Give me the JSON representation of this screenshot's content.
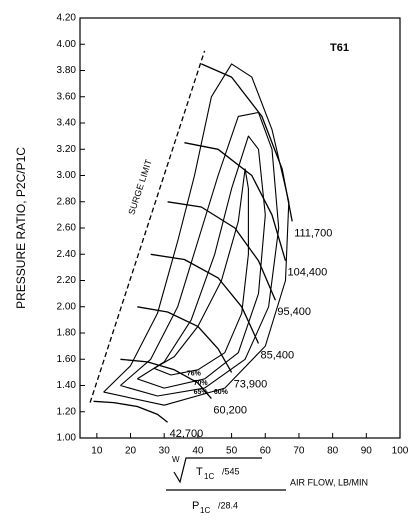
{
  "chart_data": {
    "type": "line",
    "title": "T61",
    "y_label": "PRESSURE RATIO, P2C/P1C",
    "x_label": {
      "w": "W",
      "t": "T",
      "t_sub": "1C",
      "t_div": "/545",
      "p": "P",
      "p_sub": "1C",
      "p_div": "/28.4",
      "text": "AIR FLOW, LB/MIN"
    },
    "xlim": [
      5,
      100
    ],
    "ylim": [
      1.0,
      4.2
    ],
    "xticks": [
      10,
      20,
      30,
      40,
      50,
      60,
      70,
      80,
      90,
      100
    ],
    "yticks": [
      {
        "value": 1.0,
        "label": "1.00"
      },
      {
        "value": 1.2,
        "label": "1.20"
      },
      {
        "value": 1.4,
        "label": "1.40"
      },
      {
        "value": 1.6,
        "label": "1.60"
      },
      {
        "value": 1.8,
        "label": "1.80"
      },
      {
        "value": 2.0,
        "label": "2.00"
      },
      {
        "value": 2.2,
        "label": "2.20"
      },
      {
        "value": 2.4,
        "label": "2.40"
      },
      {
        "value": 2.6,
        "label": "2.60"
      },
      {
        "value": 2.8,
        "label": "2.80"
      },
      {
        "value": 3.0,
        "label": "3.00"
      },
      {
        "value": 3.2,
        "label": "3.20"
      },
      {
        "value": 3.4,
        "label": "3.40"
      },
      {
        "value": 3.6,
        "label": "3.60"
      },
      {
        "value": 3.8,
        "label": "3.80"
      },
      {
        "value": 4.0,
        "label": "4.00"
      },
      {
        "value": 4.2,
        "label": "4.20"
      }
    ],
    "grid": false,
    "color": "#000000",
    "surge_limit": {
      "label": "SURGE LIMIT",
      "x": [
        8,
        42
      ],
      "values": [
        1.27,
        3.95
      ]
    },
    "series": [
      {
        "name": "42,700",
        "x": [
          9,
          15,
          22,
          28,
          31
        ],
        "values": [
          1.28,
          1.27,
          1.24,
          1.18,
          1.12
        ]
      },
      {
        "name": "60,200",
        "x": [
          17,
          25,
          33,
          40,
          44
        ],
        "values": [
          1.6,
          1.58,
          1.52,
          1.42,
          1.3
        ]
      },
      {
        "name": "73,900",
        "x": [
          22,
          31,
          40,
          46,
          50
        ],
        "values": [
          2.0,
          1.96,
          1.85,
          1.68,
          1.5
        ]
      },
      {
        "name": "85,400",
        "x": [
          26,
          36,
          46,
          53,
          58
        ],
        "values": [
          2.4,
          2.36,
          2.22,
          2.0,
          1.72
        ]
      },
      {
        "name": "95,400",
        "x": [
          31,
          41,
          51,
          58,
          63
        ],
        "values": [
          2.8,
          2.76,
          2.6,
          2.35,
          2.05
        ]
      },
      {
        "name": "104,400",
        "x": [
          36,
          46,
          56,
          62,
          66
        ],
        "values": [
          3.25,
          3.2,
          3.0,
          2.7,
          2.35
        ]
      },
      {
        "name": "111,700",
        "x": [
          41,
          50,
          59,
          65,
          68
        ],
        "values": [
          3.85,
          3.75,
          3.45,
          3.05,
          2.65
        ]
      }
    ],
    "contours": [
      {
        "name": "76%",
        "x": [
          27,
          33,
          40,
          47,
          52,
          54,
          55,
          55,
          53,
          48,
          40,
          32,
          27
        ],
        "values": [
          1.53,
          1.62,
          1.85,
          2.2,
          2.65,
          3.05,
          2.9,
          2.4,
          1.95,
          1.65,
          1.52,
          1.48,
          1.53
        ]
      },
      {
        "name": "70%",
        "x": [
          22,
          30,
          38,
          45,
          50,
          55,
          58,
          60,
          58,
          52,
          42,
          30,
          22
        ],
        "values": [
          1.45,
          1.58,
          1.9,
          2.4,
          2.9,
          3.3,
          3.2,
          2.7,
          2.1,
          1.65,
          1.45,
          1.38,
          1.45
        ]
      },
      {
        "name": "65%",
        "x": [
          17,
          26,
          34,
          40,
          46,
          52,
          58,
          62,
          64,
          61,
          54,
          42,
          28,
          17
        ],
        "values": [
          1.4,
          1.6,
          2.0,
          2.5,
          3.0,
          3.45,
          3.48,
          3.2,
          2.6,
          2.0,
          1.6,
          1.38,
          1.32,
          1.4
        ]
      },
      {
        "name": "60%",
        "x": [
          12,
          20,
          28,
          34,
          39,
          44,
          50,
          56,
          62,
          67,
          66,
          60,
          48,
          30,
          12
        ],
        "values": [
          1.35,
          1.55,
          1.95,
          2.5,
          3.0,
          3.6,
          3.85,
          3.75,
          3.35,
          2.8,
          2.2,
          1.7,
          1.38,
          1.25,
          1.35
        ]
      }
    ]
  }
}
